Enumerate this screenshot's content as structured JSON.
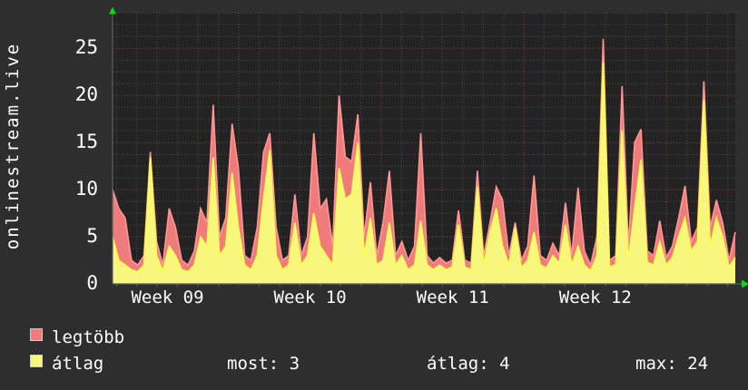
{
  "chart_data": {
    "type": "area",
    "title": "onlinestream.live",
    "x_axis": {
      "labels": [
        "Week 09",
        "Week 10",
        "Week 11",
        "Week 12"
      ],
      "minor_gridline_interval": "1 day",
      "major_gridline_interval": "1 week",
      "span": "about 4.4 weeks of data, ~2.4h per sample point"
    },
    "y_axis": {
      "ticks": [
        0,
        5,
        10,
        15,
        20,
        25
      ],
      "range": [
        0,
        28.8
      ],
      "grid_minor_step": 1.25,
      "grid_major_step": 5
    },
    "grid": true,
    "legend_position": "bottom-left",
    "series": [
      {
        "name": "legtöbb",
        "fill": "#ef7b7b",
        "stroke": "#ff9595",
        "values": [
          10,
          8,
          7,
          2.5,
          2,
          3,
          14,
          4.5,
          2,
          8,
          6,
          2.5,
          2,
          3.5,
          8,
          6.5,
          19,
          5,
          7,
          17,
          12.3,
          3,
          2.5,
          6,
          14,
          16,
          6,
          2.5,
          3,
          9.5,
          3,
          5,
          16,
          8,
          9,
          4,
          20,
          13.5,
          13,
          18,
          5,
          10.8,
          3,
          6.5,
          12,
          3,
          4.5,
          2.5,
          4,
          16,
          3,
          2.2,
          2.8,
          2.2,
          2.5,
          7.8,
          2.5,
          2.2,
          12,
          3,
          6.5,
          10.3,
          8.9,
          3,
          6.5,
          2.5,
          4,
          11.5,
          3,
          2.5,
          4.3,
          3,
          8.6,
          3,
          10.2,
          3.5,
          2,
          5,
          26,
          2.5,
          3,
          21,
          4,
          15,
          16.4,
          3.5,
          3,
          6.7,
          2.8,
          4,
          7,
          10.4,
          4.5,
          6,
          21.5,
          6,
          8.9,
          6.5,
          2.5,
          5.5
        ]
      },
      {
        "name": "átlag",
        "fill": "#f7f77d",
        "stroke": "#ffff4f",
        "values": [
          5,
          2.5,
          2,
          1.5,
          1.3,
          2,
          13.4,
          3,
          1.4,
          4,
          3,
          1.5,
          1.3,
          2,
          5,
          4,
          13.4,
          3,
          4,
          11.8,
          6,
          2,
          1.5,
          3,
          9,
          14.2,
          3,
          1.5,
          2,
          6.5,
          2,
          3,
          7.5,
          4,
          3,
          2,
          12.3,
          9,
          9.5,
          15,
          3,
          7,
          2,
          2.5,
          6.5,
          2,
          3,
          1.5,
          2,
          6.7,
          2,
          1.5,
          2,
          1.5,
          1.8,
          6.3,
          1.8,
          1.5,
          10.3,
          2,
          5.5,
          8,
          4,
          2,
          6,
          1.7,
          2.5,
          5.5,
          2,
          1.7,
          3,
          2.2,
          6.3,
          2,
          4,
          2,
          1.4,
          3,
          23.5,
          1.8,
          2,
          16.3,
          2.5,
          8,
          13.2,
          2.3,
          2,
          4.5,
          2,
          2.8,
          5,
          7,
          3.5,
          4.5,
          19.5,
          4,
          7,
          5,
          1.8,
          2.8
        ]
      }
    ]
  },
  "legend": {
    "items": [
      {
        "label": "legtöbb",
        "color": "#ef7b7b"
      },
      {
        "label": "átlag",
        "color": "#f7f77d"
      }
    ]
  },
  "stats": [
    {
      "label": "most",
      "value": "3",
      "text": "most: 3"
    },
    {
      "label": "átlag",
      "value": "4",
      "text": "átlag: 4"
    },
    {
      "label": "max",
      "value": "24",
      "text": "max: 24"
    }
  ],
  "colors": {
    "background": "#2e2e2e",
    "canvas": "#232323",
    "grid_minor": "#4d4d4d",
    "grid_major_red": "#9e4040",
    "axis": "#5f5f5f",
    "arrow_green": "#00dd00",
    "text": "#ffffff",
    "swatch_border": "#cccccc"
  }
}
